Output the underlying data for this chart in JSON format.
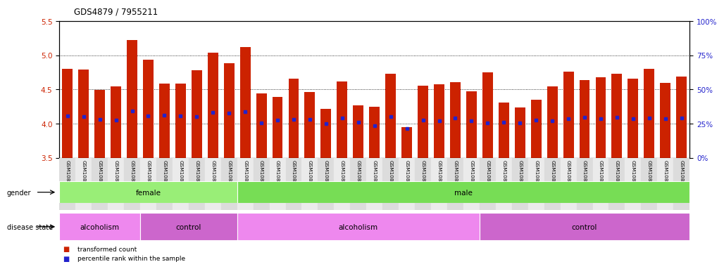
{
  "title": "GDS4879 / 7955211",
  "samples": [
    "GSM1085677",
    "GSM1085681",
    "GSM1085685",
    "GSM1085689",
    "GSM1085695",
    "GSM1085698",
    "GSM1085673",
    "GSM1085679",
    "GSM1085694",
    "GSM1085696",
    "GSM1085699",
    "GSM1085701",
    "GSM1085666",
    "GSM1085668",
    "GSM1085670",
    "GSM1085671",
    "GSM1085674",
    "GSM1085678",
    "GSM1085680",
    "GSM1085682",
    "GSM1085683",
    "GSM1085684",
    "GSM1085687",
    "GSM1085691",
    "GSM1085697",
    "GSM1085700",
    "GSM1085665",
    "GSM1085667",
    "GSM1085669",
    "GSM1085672",
    "GSM1085675",
    "GSM1085676",
    "GSM1085686",
    "GSM1085688",
    "GSM1085690",
    "GSM1085692",
    "GSM1085693",
    "GSM1085702",
    "GSM1085703"
  ],
  "bar_heights": [
    4.8,
    4.79,
    4.49,
    4.54,
    5.22,
    4.93,
    4.59,
    4.59,
    4.78,
    5.04,
    4.88,
    5.12,
    4.44,
    4.39,
    4.66,
    4.46,
    4.22,
    4.62,
    4.27,
    4.25,
    4.73,
    3.95,
    4.55,
    4.58,
    4.61,
    4.47,
    4.75,
    4.31,
    4.24,
    4.35,
    4.54,
    4.76,
    4.64,
    4.68,
    4.73,
    4.66,
    4.8,
    4.6,
    4.69
  ],
  "percentile_values": [
    4.11,
    4.1,
    4.06,
    4.05,
    4.18,
    4.11,
    4.12,
    4.11,
    4.1,
    4.16,
    4.15,
    4.17,
    4.01,
    4.05,
    4.06,
    4.06,
    4.0,
    4.08,
    4.02,
    3.97,
    4.1,
    3.93,
    4.05,
    4.04,
    4.08,
    4.04,
    4.01,
    4.02,
    4.01,
    4.05,
    4.04,
    4.07,
    4.09,
    4.07,
    4.09,
    4.07,
    4.08,
    4.07,
    4.08
  ],
  "ymin": 3.5,
  "ymax": 5.5,
  "bar_color": "#CC2200",
  "percentile_color": "#2222CC",
  "bg_color": "#ffffff",
  "gender_groups": [
    {
      "label": "female",
      "start": 0,
      "end": 11,
      "color": "#99EE77"
    },
    {
      "label": "male",
      "start": 11,
      "end": 39,
      "color": "#77DD55"
    }
  ],
  "disease_groups": [
    {
      "label": "alcoholism",
      "start": 0,
      "end": 5,
      "color": "#EE88EE"
    },
    {
      "label": "control",
      "start": 5,
      "end": 11,
      "color": "#CC66CC"
    },
    {
      "label": "alcoholism",
      "start": 11,
      "end": 26,
      "color": "#EE88EE"
    },
    {
      "label": "control",
      "start": 26,
      "end": 39,
      "color": "#CC66CC"
    }
  ],
  "yticks_left": [
    3.5,
    4.0,
    4.5,
    5.0,
    5.5
  ],
  "yticks_right": [
    0,
    25,
    50,
    75,
    100
  ],
  "grid_values": [
    4.0,
    4.5,
    5.0
  ]
}
